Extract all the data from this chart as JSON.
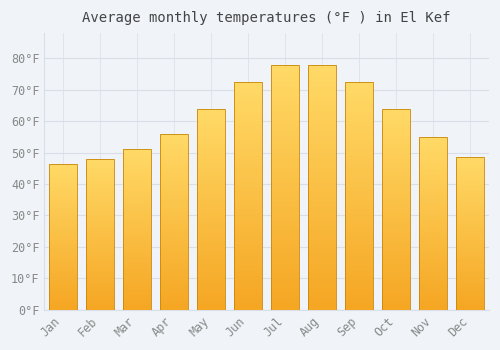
{
  "title": "Average monthly temperatures (°F ) in El Kef",
  "months": [
    "Jan",
    "Feb",
    "Mar",
    "Apr",
    "May",
    "Jun",
    "Jul",
    "Aug",
    "Sep",
    "Oct",
    "Nov",
    "Dec"
  ],
  "values": [
    46.5,
    48.0,
    51.0,
    56.0,
    64.0,
    72.5,
    78.0,
    78.0,
    72.5,
    64.0,
    55.0,
    48.5
  ],
  "bar_color_bottom": "#F5A623",
  "bar_color_top": "#FFD966",
  "bar_edge_color": "#C8860A",
  "background_color": "#F0F4F8",
  "plot_bg_color": "#F0F4F8",
  "grid_color": "#D8DFE8",
  "text_color": "#888888",
  "title_color": "#444444",
  "ylim": [
    0,
    88
  ],
  "yticks": [
    0,
    10,
    20,
    30,
    40,
    50,
    60,
    70,
    80
  ],
  "title_fontsize": 10,
  "tick_fontsize": 8.5,
  "bar_width": 0.75
}
